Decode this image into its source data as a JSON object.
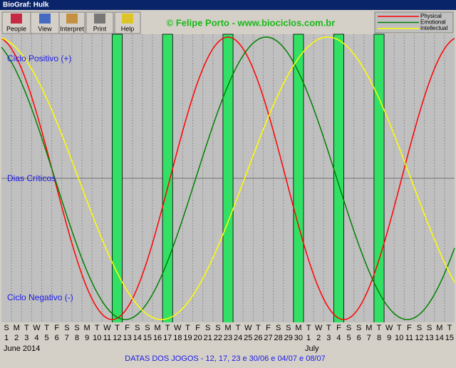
{
  "window": {
    "title": "BioGraf: Hulk"
  },
  "toolbar": {
    "buttons": [
      "People",
      "View",
      "Interpret",
      "Print",
      "Help"
    ]
  },
  "credit": "© Felipe Porto - www.biociclos.com.br",
  "legend": [
    "Physical",
    "Emotional",
    "Intellectual"
  ],
  "plot_labels": {
    "positive": "Ciclo Positivo (+)",
    "critical": "Dias Críticos",
    "negative": "Ciclo Negativo (-)"
  },
  "days": {
    "weekdays": [
      "S",
      "M",
      "T",
      "W",
      "T",
      "F",
      "S",
      "S",
      "M",
      "T",
      "W",
      "T",
      "F",
      "S",
      "S",
      "M",
      "T",
      "W",
      "T",
      "F",
      "S",
      "S",
      "M",
      "T",
      "W",
      "T",
      "F",
      "S",
      "S",
      "M",
      "T",
      "W",
      "T",
      "F",
      "S",
      "S",
      "M",
      "T",
      "W",
      "T",
      "F",
      "S",
      "S",
      "M",
      "T"
    ],
    "numbers": [
      1,
      2,
      3,
      4,
      5,
      6,
      7,
      8,
      9,
      10,
      11,
      12,
      13,
      14,
      15,
      16,
      17,
      18,
      19,
      20,
      21,
      22,
      23,
      24,
      25,
      26,
      27,
      28,
      29,
      30,
      1,
      2,
      3,
      4,
      5,
      6,
      7,
      8,
      9,
      10,
      11,
      12,
      13,
      14,
      15
    ]
  },
  "months": [
    "June 2014",
    "July"
  ],
  "footer": "DATAS DOS JOGOS - 12, 17, 23 e 30/06 e 04/07 e 08/07"
}
